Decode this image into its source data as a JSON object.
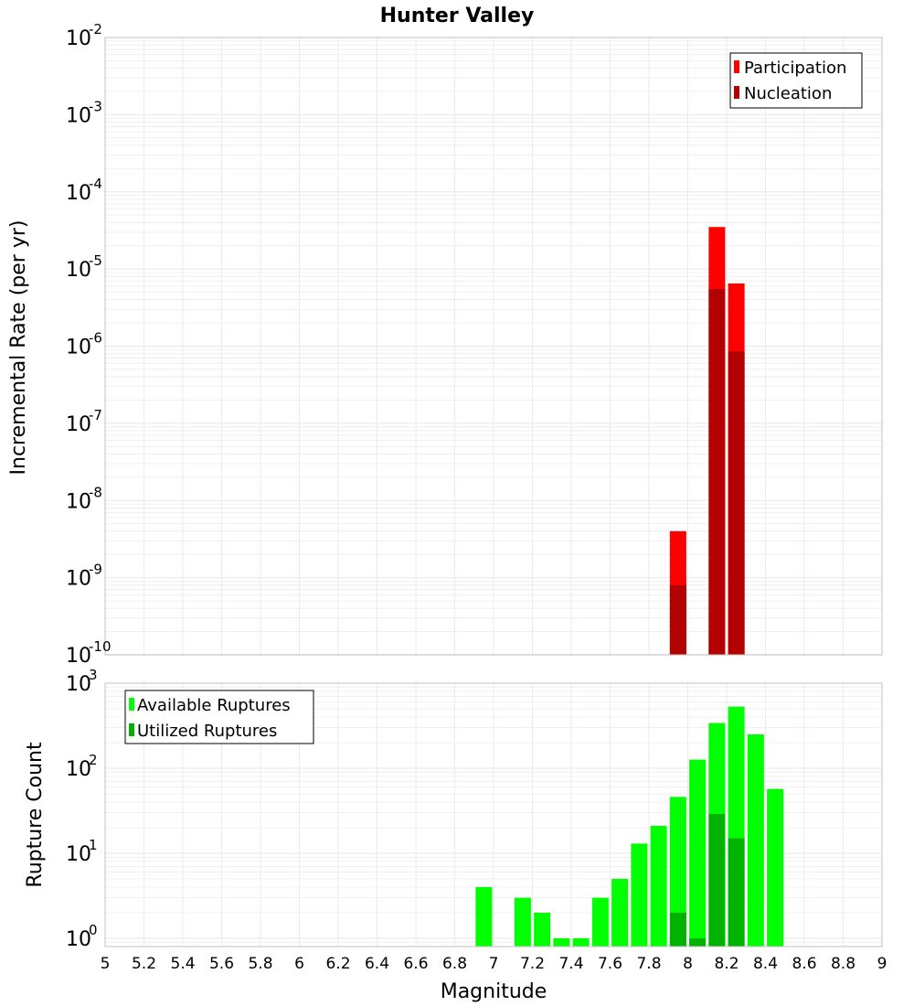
{
  "colors": {
    "participation": "#ff0000",
    "nucleation": "#b30000",
    "available": "#00ff00",
    "utilized": "#00b300",
    "grid": "#ebebeb",
    "frame": "#c0c0c0"
  },
  "chart_data": [
    {
      "type": "bar",
      "panel": "top",
      "title": "Hunter Valley",
      "xlabel": "Magnitude",
      "ylabel": "Incremental Rate (per yr)",
      "yscale": "log",
      "ylim": [
        1e-10,
        0.01
      ],
      "xlim": [
        5,
        9
      ],
      "ytick_base": "10",
      "ytick_exponents": [
        "-10",
        "-9",
        "-8",
        "-7",
        "-6",
        "-5",
        "-4",
        "-3",
        "-2"
      ],
      "grid": true,
      "legend_position": "top-right",
      "legend": [
        "Participation",
        "Nucleation"
      ],
      "series": [
        {
          "name": "Participation",
          "x": [
            7.95,
            8.15,
            8.25
          ],
          "values": [
            4e-09,
            3.5e-05,
            6.5e-06
          ]
        },
        {
          "name": "Nucleation",
          "x": [
            7.95,
            8.15,
            8.25
          ],
          "values": [
            8e-10,
            5.5e-06,
            8.5e-07
          ]
        }
      ]
    },
    {
      "type": "bar",
      "panel": "bottom",
      "xlabel": "Magnitude",
      "ylabel": "Rupture Count",
      "yscale": "log",
      "ylim": [
        0.8,
        1000
      ],
      "xlim": [
        5,
        9
      ],
      "ytick_base": "10",
      "ytick_exponents": [
        "0",
        "1",
        "2",
        "3"
      ],
      "xticks": [
        "5",
        "5.2",
        "5.4",
        "5.6",
        "5.8",
        "6",
        "6.2",
        "6.4",
        "6.6",
        "6.8",
        "7",
        "7.2",
        "7.4",
        "7.6",
        "7.8",
        "8",
        "8.2",
        "8.4",
        "8.6",
        "8.8",
        "9"
      ],
      "grid": true,
      "legend_position": "top-left",
      "legend": [
        "Available Ruptures",
        "Utilized Ruptures"
      ],
      "series": [
        {
          "name": "Available Ruptures",
          "x": [
            6.95,
            7.15,
            7.25,
            7.35,
            7.45,
            7.55,
            7.65,
            7.75,
            7.85,
            7.95,
            8.05,
            8.15,
            8.25,
            8.35,
            8.45
          ],
          "values": [
            4,
            3,
            2,
            1,
            1,
            3,
            5,
            13,
            21,
            46,
            126,
            340,
            530,
            250,
            57
          ]
        },
        {
          "name": "Utilized Ruptures",
          "x": [
            7.95,
            8.05,
            8.15,
            8.25
          ],
          "values": [
            2,
            1,
            29,
            15
          ]
        }
      ]
    }
  ]
}
